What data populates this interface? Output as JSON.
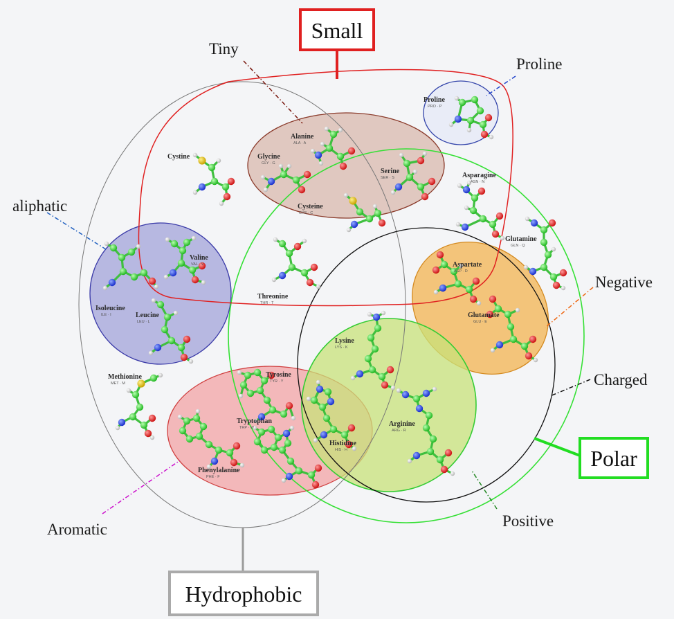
{
  "labels": {
    "small": "Small",
    "polar": "Polar",
    "hydrophobic": "Hydrophobic",
    "tiny": "Tiny",
    "proline": "Proline",
    "aliphatic": "aliphatic",
    "negative": "Negative",
    "charged": "Charged",
    "positive": "Positive",
    "aromatic": "Aromatic"
  },
  "colors": {
    "small": "#e02020",
    "polar": "#22dd22",
    "hydrophobic": "#9a9a9a",
    "tiny_fill": "#d9b8ad",
    "aliphatic_fill": "#a7a9db",
    "aromatic_fill": "#f3a3a6",
    "negative_fill": "#f2b85a",
    "positive_fill": "#c8e27a",
    "proline_stroke": "#3344aa"
  },
  "amino_acids": {
    "proline": {
      "name": "Proline",
      "code": "PRO · P"
    },
    "alanine": {
      "name": "Alanine",
      "code": "ALA · A"
    },
    "glycine": {
      "name": "Glycine",
      "code": "GLY · G"
    },
    "serine": {
      "name": "Serine",
      "code": "SER · S"
    },
    "cysteine_tiny": {
      "name": "Cysteine",
      "code": "CYS · C"
    },
    "cysteine": {
      "name": "Cystine",
      "code": ""
    },
    "asparagine": {
      "name": "Asparagine",
      "code": "ASN · N"
    },
    "glutamine": {
      "name": "Glutamine",
      "code": "GLN · Q"
    },
    "valine": {
      "name": "Valine",
      "code": "VAL · V"
    },
    "isoleucine": {
      "name": "Isoleucine",
      "code": "ILE · I"
    },
    "leucine": {
      "name": "Leucine",
      "code": "LEU · L"
    },
    "threonine": {
      "name": "Threonine",
      "code": "THR · T"
    },
    "aspartate": {
      "name": "Aspartate",
      "code": "ASP · D"
    },
    "glutamate": {
      "name": "Glutamate",
      "code": "GLU · E"
    },
    "lysine": {
      "name": "Lysine",
      "code": "LYS · K"
    },
    "arginine": {
      "name": "Arginine",
      "code": "ARG · R"
    },
    "histidine": {
      "name": "Histidine",
      "code": "HIS · H"
    },
    "tyrosine": {
      "name": "Tyrosine",
      "code": "TYR · Y"
    },
    "tryptophan": {
      "name": "Tryptophan",
      "code": "TRP · W"
    },
    "phenylalanine": {
      "name": "Phenylalanine",
      "code": "PHE · F"
    },
    "methionine": {
      "name": "Methionine",
      "code": "MET · M"
    }
  }
}
